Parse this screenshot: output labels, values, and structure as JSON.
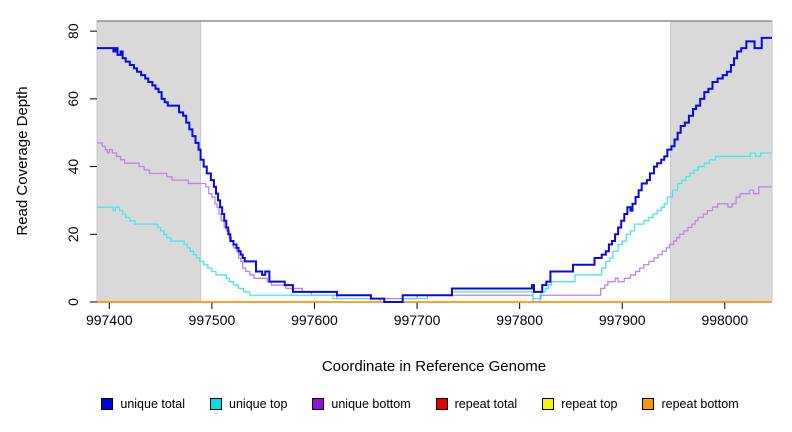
{
  "chart_data": {
    "type": "line",
    "subtype": "step-after",
    "title": "",
    "xlabel": "Coordinate in Reference Genome",
    "ylabel": "Read Coverage Depth",
    "xlim": [
      997388,
      998046
    ],
    "ylim": [
      0,
      83
    ],
    "x_ticks": [
      997400,
      997500,
      997600,
      997700,
      997800,
      997900,
      998000
    ],
    "y_ticks": [
      0,
      20,
      40,
      60,
      80
    ],
    "grid": false,
    "legend_position": "bottom",
    "frame_top_line_color": "#909090",
    "shaded_regions": [
      {
        "x0": 997388,
        "x1": 997489,
        "color": "#d9d9d9",
        "border": "#c8c8c8"
      },
      {
        "x0": 997947,
        "x1": 998046,
        "color": "#d9d9d9",
        "border": "#c8c8c8"
      }
    ],
    "draw_order": [
      3,
      4,
      2,
      1,
      5,
      0
    ],
    "series": [
      {
        "name": "unique total",
        "color": "#0000e0",
        "line_color": "#0a0ae0",
        "width": 2,
        "points": [
          [
            997388,
            75
          ],
          [
            997404,
            74
          ],
          [
            997406,
            75
          ],
          [
            997408,
            73
          ],
          [
            997411,
            74
          ],
          [
            997413,
            72
          ],
          [
            997416,
            71
          ],
          [
            997420,
            70
          ],
          [
            997424,
            69
          ],
          [
            997427,
            68
          ],
          [
            997431,
            67
          ],
          [
            997435,
            66
          ],
          [
            997438,
            65
          ],
          [
            997442,
            64
          ],
          [
            997445,
            63
          ],
          [
            997448,
            62
          ],
          [
            997451,
            60
          ],
          [
            997454,
            59
          ],
          [
            997457,
            58
          ],
          [
            997468,
            56
          ],
          [
            997472,
            55
          ],
          [
            997475,
            53
          ],
          [
            997478,
            51
          ],
          [
            997481,
            49
          ],
          [
            997484,
            47
          ],
          [
            997487,
            45
          ],
          [
            997489,
            42
          ],
          [
            997492,
            40
          ],
          [
            997495,
            38
          ],
          [
            997499,
            36
          ],
          [
            997502,
            34
          ],
          [
            997504,
            32
          ],
          [
            997506,
            30
          ],
          [
            997508,
            28
          ],
          [
            997510,
            26
          ],
          [
            997512,
            24
          ],
          [
            997514,
            22
          ],
          [
            997516,
            20
          ],
          [
            997518,
            18
          ],
          [
            997521,
            17
          ],
          [
            997524,
            16
          ],
          [
            997526,
            15
          ],
          [
            997528,
            14
          ],
          [
            997530,
            13
          ],
          [
            997532,
            12
          ],
          [
            997543,
            9
          ],
          [
            997549,
            8
          ],
          [
            997552,
            9
          ],
          [
            997556,
            6
          ],
          [
            997571,
            5
          ],
          [
            997579,
            3
          ],
          [
            997622,
            2
          ],
          [
            997655,
            1
          ],
          [
            997668,
            0
          ],
          [
            997686,
            2
          ],
          [
            997734,
            4
          ],
          [
            997812,
            5
          ],
          [
            997814,
            3
          ],
          [
            997822,
            5
          ],
          [
            997826,
            6
          ],
          [
            997830,
            9
          ],
          [
            997852,
            11
          ],
          [
            997873,
            13
          ],
          [
            997880,
            14
          ],
          [
            997884,
            15
          ],
          [
            997887,
            17
          ],
          [
            997890,
            18
          ],
          [
            997893,
            20
          ],
          [
            997896,
            22
          ],
          [
            997899,
            24
          ],
          [
            997902,
            26
          ],
          [
            997905,
            28
          ],
          [
            997908,
            27
          ],
          [
            997910,
            29
          ],
          [
            997913,
            31
          ],
          [
            997916,
            33
          ],
          [
            997919,
            35
          ],
          [
            997924,
            36
          ],
          [
            997927,
            38
          ],
          [
            997931,
            40
          ],
          [
            997934,
            41
          ],
          [
            997938,
            42
          ],
          [
            997941,
            43
          ],
          [
            997944,
            45
          ],
          [
            997948,
            46
          ],
          [
            997951,
            48
          ],
          [
            997954,
            50
          ],
          [
            997957,
            52
          ],
          [
            997961,
            53
          ],
          [
            997965,
            55
          ],
          [
            997969,
            57
          ],
          [
            997972,
            58
          ],
          [
            997976,
            60
          ],
          [
            997980,
            62
          ],
          [
            997984,
            63
          ],
          [
            997988,
            65
          ],
          [
            997993,
            66
          ],
          [
            997998,
            67
          ],
          [
            998002,
            68
          ],
          [
            998006,
            70
          ],
          [
            998009,
            72
          ],
          [
            998012,
            74
          ],
          [
            998016,
            75
          ],
          [
            998021,
            77
          ],
          [
            998029,
            75
          ],
          [
            998036,
            78
          ]
        ]
      },
      {
        "name": "unique top",
        "color": "#00e0e0",
        "line_color": "#45e6e6",
        "width": 1.3,
        "points": [
          [
            997388,
            28
          ],
          [
            997404,
            27
          ],
          [
            997406,
            28
          ],
          [
            997410,
            27
          ],
          [
            997413,
            26
          ],
          [
            997416,
            25
          ],
          [
            997420,
            24
          ],
          [
            997425,
            23
          ],
          [
            997447,
            22
          ],
          [
            997450,
            21
          ],
          [
            997453,
            20
          ],
          [
            997456,
            19
          ],
          [
            997460,
            18
          ],
          [
            997473,
            17
          ],
          [
            997476,
            16
          ],
          [
            997479,
            15
          ],
          [
            997482,
            14
          ],
          [
            997485,
            13
          ],
          [
            997488,
            12
          ],
          [
            997492,
            11
          ],
          [
            997496,
            10
          ],
          [
            997500,
            9
          ],
          [
            997504,
            8
          ],
          [
            997514,
            7
          ],
          [
            997517,
            6
          ],
          [
            997521,
            5
          ],
          [
            997526,
            4
          ],
          [
            997531,
            3
          ],
          [
            997537,
            2
          ],
          [
            997618,
            1
          ],
          [
            997664,
            0
          ],
          [
            997686,
            1
          ],
          [
            997710,
            2
          ],
          [
            997734,
            3
          ],
          [
            997813,
            1
          ],
          [
            997821,
            3
          ],
          [
            997825,
            4
          ],
          [
            997828,
            5
          ],
          [
            997831,
            6
          ],
          [
            997854,
            8
          ],
          [
            997880,
            10
          ],
          [
            997884,
            12
          ],
          [
            997888,
            13
          ],
          [
            997891,
            15
          ],
          [
            997896,
            17
          ],
          [
            997900,
            18
          ],
          [
            997904,
            20
          ],
          [
            997908,
            21
          ],
          [
            997912,
            23
          ],
          [
            997921,
            24
          ],
          [
            997926,
            25
          ],
          [
            997930,
            26
          ],
          [
            997934,
            27
          ],
          [
            997938,
            28
          ],
          [
            997941,
            29
          ],
          [
            997944,
            31
          ],
          [
            997949,
            33
          ],
          [
            997954,
            35
          ],
          [
            997958,
            36
          ],
          [
            997962,
            37
          ],
          [
            997966,
            38
          ],
          [
            997970,
            39
          ],
          [
            997974,
            40
          ],
          [
            997980,
            41
          ],
          [
            997985,
            42
          ],
          [
            997991,
            43
          ],
          [
            998025,
            44
          ],
          [
            998030,
            43
          ],
          [
            998035,
            44
          ]
        ]
      },
      {
        "name": "unique bottom",
        "color": "#9810d8",
        "line_color": "#bd84e8",
        "width": 1.3,
        "points": [
          [
            997388,
            47
          ],
          [
            997393,
            46
          ],
          [
            997396,
            45
          ],
          [
            997398,
            44
          ],
          [
            997400,
            45
          ],
          [
            997403,
            44
          ],
          [
            997407,
            43
          ],
          [
            997411,
            42
          ],
          [
            997415,
            41
          ],
          [
            997429,
            40
          ],
          [
            997434,
            39
          ],
          [
            997439,
            38
          ],
          [
            997456,
            37
          ],
          [
            997461,
            36
          ],
          [
            997477,
            35
          ],
          [
            997494,
            34
          ],
          [
            997497,
            32
          ],
          [
            997500,
            31
          ],
          [
            997503,
            29
          ],
          [
            997505,
            28
          ],
          [
            997507,
            26
          ],
          [
            997509,
            24
          ],
          [
            997512,
            22
          ],
          [
            997514,
            21
          ],
          [
            997517,
            19
          ],
          [
            997519,
            18
          ],
          [
            997521,
            16
          ],
          [
            997524,
            15
          ],
          [
            997526,
            13
          ],
          [
            997528,
            12
          ],
          [
            997530,
            10
          ],
          [
            997533,
            9
          ],
          [
            997537,
            8
          ],
          [
            997541,
            7
          ],
          [
            997554,
            6
          ],
          [
            997558,
            5
          ],
          [
            997572,
            4
          ],
          [
            997588,
            3
          ],
          [
            997597,
            2
          ],
          [
            997622,
            1
          ],
          [
            997700,
            2
          ],
          [
            997813,
            0
          ],
          [
            997820,
            2
          ],
          [
            997879,
            4
          ],
          [
            997883,
            5
          ],
          [
            997886,
            6
          ],
          [
            997893,
            7
          ],
          [
            997896,
            6
          ],
          [
            997902,
            7
          ],
          [
            997908,
            8
          ],
          [
            997913,
            9
          ],
          [
            997917,
            10
          ],
          [
            997921,
            11
          ],
          [
            997926,
            12
          ],
          [
            997931,
            13
          ],
          [
            997935,
            14
          ],
          [
            997939,
            15
          ],
          [
            997943,
            16
          ],
          [
            997946,
            17
          ],
          [
            997950,
            18
          ],
          [
            997953,
            19
          ],
          [
            997956,
            20
          ],
          [
            997960,
            21
          ],
          [
            997964,
            22
          ],
          [
            997968,
            23
          ],
          [
            997971,
            24
          ],
          [
            997974,
            25
          ],
          [
            997979,
            26
          ],
          [
            997983,
            27
          ],
          [
            997988,
            28
          ],
          [
            997993,
            29
          ],
          [
            998003,
            28
          ],
          [
            998007,
            29
          ],
          [
            998011,
            31
          ],
          [
            998015,
            32
          ],
          [
            998024,
            33
          ],
          [
            998028,
            32
          ],
          [
            998033,
            34
          ]
        ]
      },
      {
        "name": "repeat total",
        "color": "#e60000",
        "line_color": "#e60000",
        "width": 1.3,
        "points": [
          [
            997388,
            0
          ]
        ]
      },
      {
        "name": "repeat top",
        "color": "#f5f500",
        "line_color": "#f5f500",
        "width": 1.3,
        "points": [
          [
            997388,
            0
          ]
        ]
      },
      {
        "name": "repeat bottom",
        "color": "#ff9400",
        "line_color": "#ff9400",
        "width": 1.6,
        "points": [
          [
            997388,
            0
          ]
        ]
      }
    ]
  }
}
